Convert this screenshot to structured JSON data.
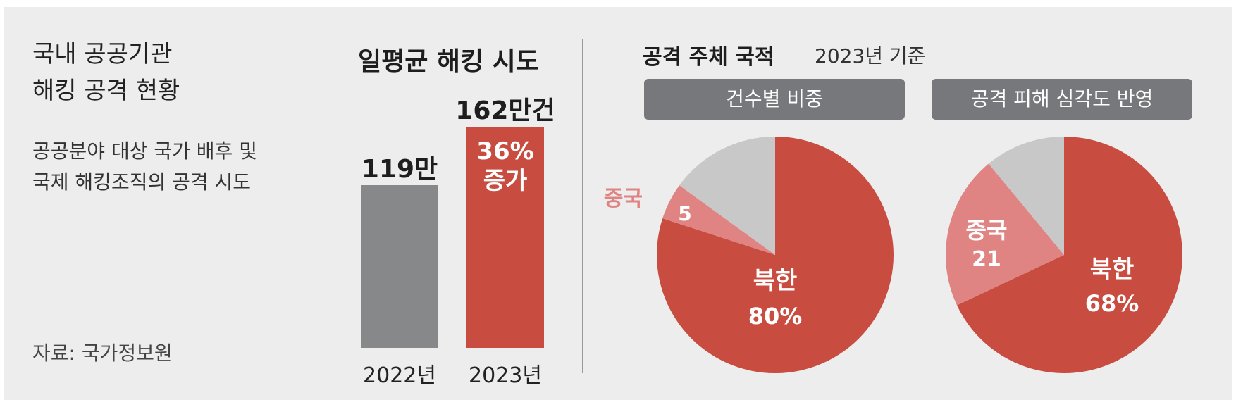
{
  "header": {
    "title_line1": "국내 공공기관",
    "title_line2": "해킹 공격 현황",
    "subtitle_line1": "공공분야 대상 국가 배후 및",
    "subtitle_line2": "국제 해킹조직의 공격 시도",
    "source": "자료: 국가정보원"
  },
  "bars_section": {
    "title": "일평균 해킹 시도",
    "increase_line1": "36%",
    "increase_line2": "증가"
  },
  "pies_section": {
    "title": "공격 주체 국적",
    "note": "2023년 기준"
  },
  "colors": {
    "gray_bar": "#87888a",
    "red": "#c84c3f",
    "pink": "#e08483",
    "light_gray": "#c8c8c8",
    "tag_gray": "#77787b"
  },
  "chart_data": [
    {
      "type": "bar",
      "title": "일평균 해킹 시도",
      "categories": [
        "2022년",
        "2023년"
      ],
      "values": [
        119,
        162
      ],
      "value_labels": [
        "119만",
        "162만건"
      ],
      "unit": "만건",
      "annotation": "36% 증가"
    },
    {
      "type": "pie",
      "title": "건수별 비중",
      "slices": [
        {
          "label": "북한",
          "value": 80,
          "value_label": "80%",
          "color": "#c84c3f"
        },
        {
          "label": "중국",
          "value": 5,
          "value_label": "5",
          "color": "#e08483"
        },
        {
          "label": "",
          "value": 15,
          "value_label": "",
          "color": "#c8c8c8"
        }
      ]
    },
    {
      "type": "pie",
      "title": "공격 피해 심각도 반영",
      "slices": [
        {
          "label": "북한",
          "value": 68,
          "value_label": "68%",
          "color": "#c84c3f"
        },
        {
          "label": "중국",
          "value": 21,
          "value_label": "21",
          "color": "#e08483"
        },
        {
          "label": "",
          "value": 11,
          "value_label": "",
          "color": "#c8c8c8"
        }
      ]
    }
  ]
}
